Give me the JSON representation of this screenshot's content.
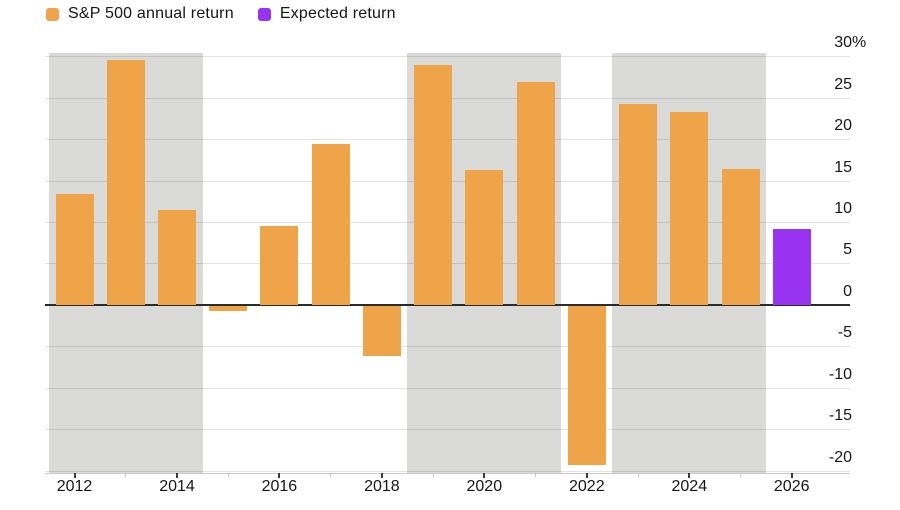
{
  "legend": {
    "items": [
      {
        "label": "S&P 500 annual return",
        "swatch": "#F0A44A"
      },
      {
        "label": "Expected return",
        "swatch": "#9933F2"
      }
    ]
  },
  "chart_data": {
    "type": "bar",
    "unit": "%",
    "categories": [
      2012,
      2013,
      2014,
      2015,
      2016,
      2017,
      2018,
      2019,
      2020,
      2021,
      2022,
      2023,
      2024,
      2025,
      2026
    ],
    "series": [
      {
        "name": "S&P 500 annual return",
        "color": "#F0A44A",
        "values": [
          13.4,
          29.6,
          11.4,
          -0.7,
          9.5,
          19.4,
          -6.2,
          28.9,
          16.3,
          26.9,
          -19.4,
          24.2,
          23.3,
          16.4,
          null
        ]
      },
      {
        "name": "Expected return",
        "color": "#9933F2",
        "values": [
          null,
          null,
          null,
          null,
          null,
          null,
          null,
          null,
          null,
          null,
          null,
          null,
          null,
          null,
          9.1
        ]
      }
    ],
    "ylim": [
      -20.3,
      30.4
    ],
    "y_ticks": [
      {
        "value": 30,
        "label": "30",
        "suffix": "%"
      },
      {
        "value": 25,
        "label": "25",
        "suffix": ""
      },
      {
        "value": 20,
        "label": "20",
        "suffix": ""
      },
      {
        "value": 15,
        "label": "15",
        "suffix": ""
      },
      {
        "value": 10,
        "label": "10",
        "suffix": ""
      },
      {
        "value": 5,
        "label": "5",
        "suffix": ""
      },
      {
        "value": 0,
        "label": "0",
        "suffix": ""
      },
      {
        "value": -5,
        "label": "-5",
        "suffix": ""
      },
      {
        "value": -10,
        "label": "-10",
        "suffix": ""
      },
      {
        "value": -15,
        "label": "-15",
        "suffix": ""
      },
      {
        "value": -20,
        "label": "-20",
        "suffix": ""
      }
    ],
    "x_tick_years": [
      2012,
      2014,
      2016,
      2018,
      2020,
      2022,
      2024,
      2026
    ],
    "shaded_bands": [
      {
        "from": 2011.5,
        "to": 2014.5
      },
      {
        "from": 2018.5,
        "to": 2021.5
      },
      {
        "from": 2022.5,
        "to": 2025.5
      }
    ],
    "grid": true,
    "legend_position": "top-left",
    "axis_side": "right",
    "colors": {
      "band": "#DADAD8",
      "gridline": "rgba(0,0,0,0.11)",
      "zero_line": "#2B2B2B",
      "axis_line": "#C9C9C9",
      "major_tick": "#3A3A3A",
      "minor_tick": "#C4C4C4",
      "text": "#161616",
      "background": "#FFFFFF"
    }
  }
}
